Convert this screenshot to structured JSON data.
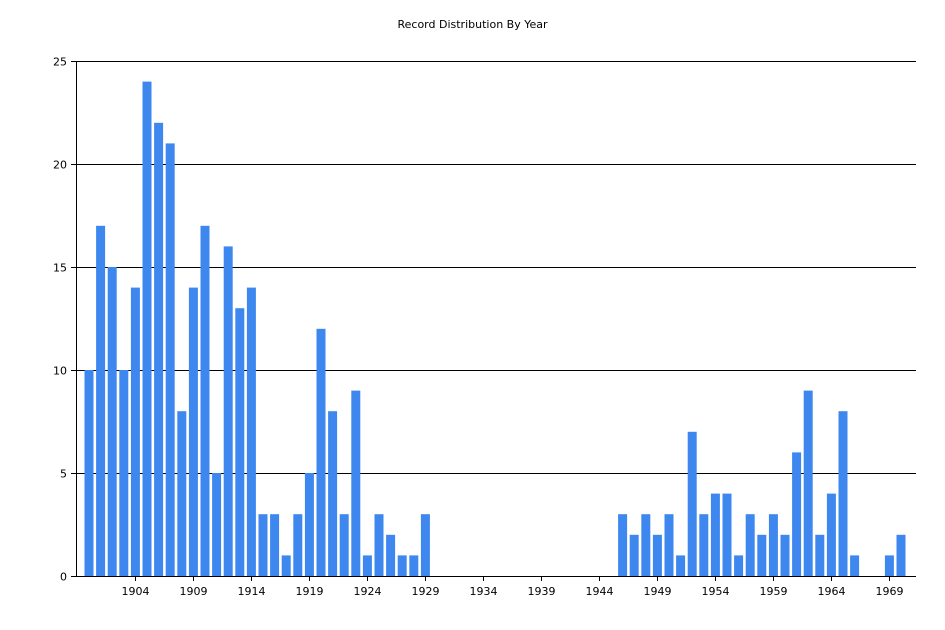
{
  "chart_data": {
    "type": "bar",
    "title": "Record Distribution By Year",
    "xlabel": "",
    "ylabel": "",
    "ylim": [
      0,
      25
    ],
    "yticks": [
      0,
      5,
      10,
      15,
      20,
      25
    ],
    "xticks": [
      "1904",
      "1909",
      "1914",
      "1919",
      "1924",
      "1929",
      "1934",
      "1939",
      "1944",
      "1949",
      "1954",
      "1959",
      "1964",
      "1969"
    ],
    "grid": true,
    "bar_color": "#3e87ee",
    "years": [
      1900,
      1901,
      1902,
      1903,
      1904,
      1905,
      1906,
      1907,
      1908,
      1909,
      1910,
      1911,
      1912,
      1913,
      1914,
      1915,
      1916,
      1917,
      1918,
      1919,
      1920,
      1921,
      1922,
      1923,
      1924,
      1925,
      1926,
      1927,
      1928,
      1929,
      1930,
      1931,
      1932,
      1933,
      1934,
      1935,
      1936,
      1937,
      1938,
      1939,
      1940,
      1941,
      1942,
      1943,
      1944,
      1945,
      1946,
      1947,
      1948,
      1949,
      1950,
      1951,
      1952,
      1953,
      1954,
      1955,
      1956,
      1957,
      1958,
      1959,
      1960,
      1961,
      1962,
      1963,
      1964,
      1965,
      1966,
      1967,
      1968,
      1969,
      1970
    ],
    "values": [
      10,
      17,
      15,
      10,
      14,
      24,
      22,
      21,
      8,
      14,
      17,
      5,
      16,
      13,
      14,
      3,
      3,
      1,
      3,
      5,
      12,
      8,
      3,
      9,
      1,
      3,
      2,
      1,
      1,
      3,
      0,
      0,
      0,
      0,
      0,
      0,
      0,
      0,
      0,
      0,
      0,
      0,
      0,
      0,
      0,
      0,
      3,
      2,
      3,
      2,
      3,
      1,
      7,
      3,
      4,
      4,
      1,
      3,
      2,
      3,
      2,
      6,
      9,
      2,
      4,
      8,
      1,
      0,
      0,
      1,
      2
    ]
  }
}
